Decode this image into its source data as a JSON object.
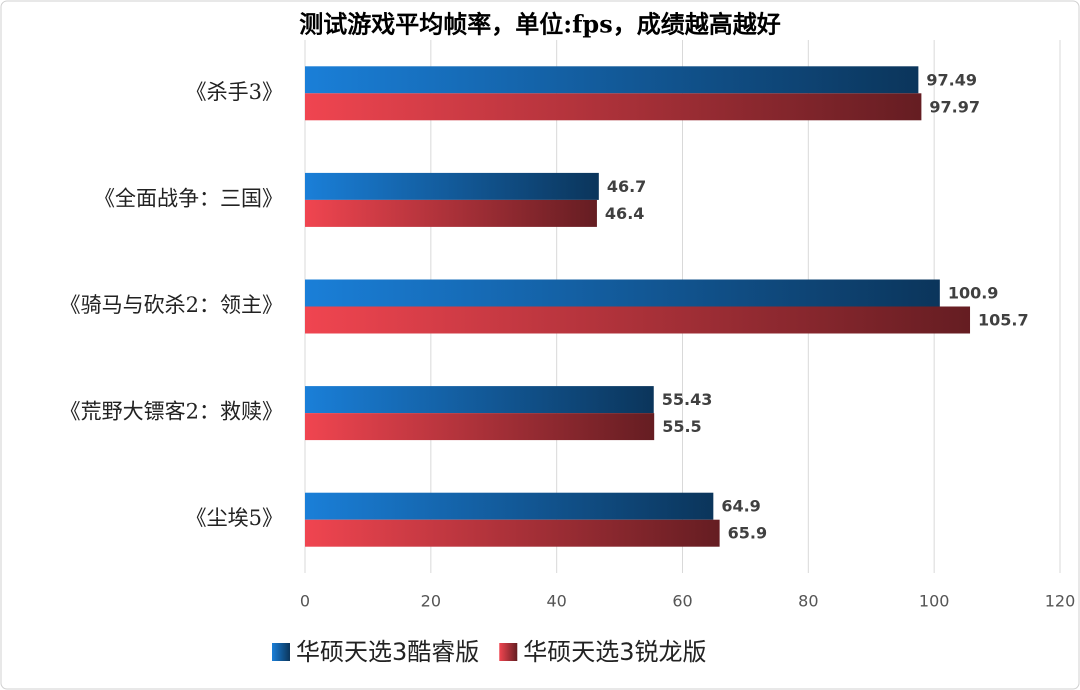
{
  "chart_data": {
    "type": "bar",
    "orientation": "horizontal",
    "title": "测试游戏平均帧率，单位:fps，成绩越高越好",
    "categories": [
      "《杀手3》",
      "《全面战争：三国》",
      "《骑马与砍杀2：领主》",
      "《荒野大镖客2：救赎》",
      "《尘埃5》"
    ],
    "series": [
      {
        "name": "华硕天选3酷睿版",
        "color": "#1a7fd8",
        "values": [
          97.49,
          46.7,
          100.9,
          55.43,
          64.9
        ]
      },
      {
        "name": "华硕天选3锐龙版",
        "color": "#f04550",
        "values": [
          97.97,
          46.4,
          105.7,
          55.5,
          65.9
        ]
      }
    ],
    "xlim": [
      0,
      120
    ],
    "xticks": [
      0,
      20,
      40,
      60,
      80,
      100,
      120
    ],
    "grid": true,
    "legend": "bottom"
  }
}
